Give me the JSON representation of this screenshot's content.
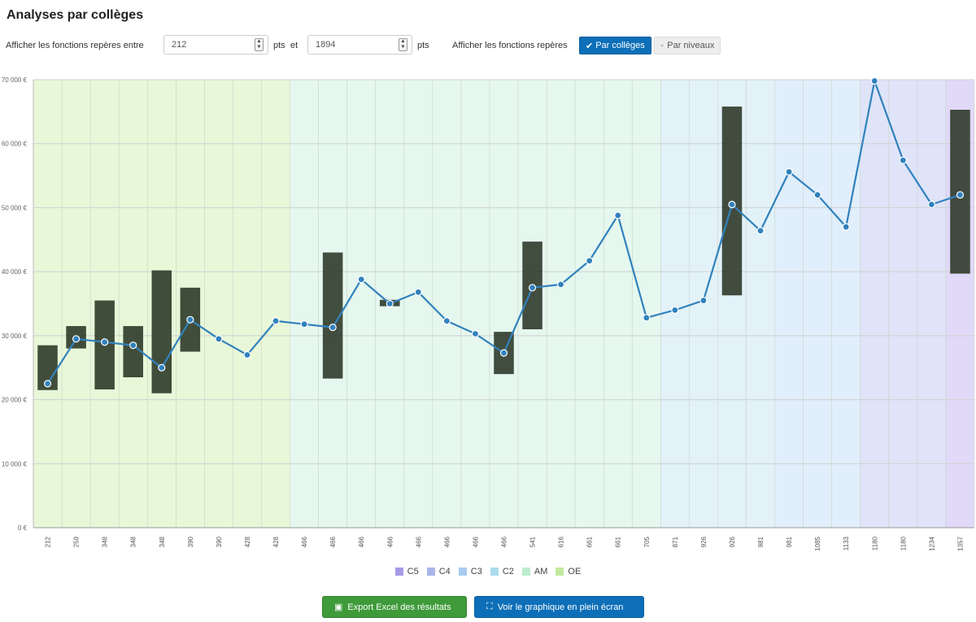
{
  "page": {
    "title": "Analyses par collèges",
    "filter_label_start": "Afficher les fonctions repères entre",
    "min_value": "212",
    "unit_1": "pts",
    "and_label": "et",
    "max_value": "1894",
    "unit_2": "pts",
    "view_label": "Afficher les fonctions repères",
    "view_options": [
      "Par collèges",
      "Par niveaux"
    ],
    "view_selected": "Par collèges",
    "export_button": "Export Excel des résultats",
    "fullscreen_button": "Voir le graphique en plein écran"
  },
  "icons": {
    "check": "check-icon",
    "excel": "excel-file-icon",
    "fullscreen": "expand-icon"
  },
  "chart_data": {
    "type": "line",
    "title": "",
    "xlabel": "",
    "ylabel": "",
    "ylim": [
      0,
      70000
    ],
    "yticks": [
      0,
      10000,
      20000,
      30000,
      40000,
      50000,
      60000,
      70000
    ],
    "ytick_labels": [
      "0 €",
      "10 000 €",
      "20 000 €",
      "30 000 €",
      "40 000 €",
      "50 000 €",
      "60 000 €",
      "70 000 €"
    ],
    "grid": true,
    "legend_placement": "bottom",
    "categories": [
      "212",
      "259",
      "348",
      "348",
      "348",
      "390",
      "390",
      "428",
      "428",
      "466",
      "466",
      "466",
      "466",
      "466",
      "466",
      "466",
      "466",
      "541",
      "616",
      "661",
      "661",
      "705",
      "871",
      "926",
      "926",
      "981",
      "981",
      "1085",
      "1133",
      "1180",
      "1180",
      "1234",
      "1357"
    ],
    "bands": [
      {
        "name": "OE",
        "color": "#d5f0b8",
        "from": 0,
        "to": 8
      },
      {
        "name": "AM",
        "color": "#d0f0e0",
        "from": 9,
        "to": 21
      },
      {
        "name": "C2",
        "color": "#cce8f4",
        "from": 22,
        "to": 25
      },
      {
        "name": "C3",
        "color": "#c8e0f8",
        "from": 26,
        "to": 28
      },
      {
        "name": "C4",
        "color": "#c4cdf2",
        "from": 29,
        "to": 31
      },
      {
        "name": "C5",
        "color": "#c6b9f2",
        "from": 32,
        "to": 32
      }
    ],
    "legend_order": [
      "C5",
      "C4",
      "C3",
      "C2",
      "AM",
      "OE"
    ],
    "legend_colors": {
      "C5": "#a59ae8",
      "C4": "#a9b6ea",
      "C3": "#a9cdf0",
      "C2": "#aadcee",
      "AM": "#bdeccf",
      "OE": "#c2ea9c"
    },
    "series": [
      {
        "type": "line",
        "color": "#3182bd",
        "values": [
          22500,
          29500,
          29000,
          28500,
          25000,
          32500,
          29500,
          27000,
          32300,
          31800,
          31300,
          38800,
          35000,
          36800,
          32300,
          30300,
          27300,
          37500,
          38000,
          41700,
          48800,
          32800,
          34000,
          35500,
          50500,
          46400,
          55600,
          52000,
          47000,
          69800,
          57400,
          50500,
          52000
        ]
      },
      {
        "type": "range",
        "color": "#2f3a2a",
        "ranges": [
          {
            "x": 0,
            "low": 21500,
            "high": 28500
          },
          {
            "x": 1,
            "low": 28000,
            "high": 31500
          },
          {
            "x": 2,
            "low": 21600,
            "high": 35500
          },
          {
            "x": 3,
            "low": 23500,
            "high": 31500
          },
          {
            "x": 4,
            "low": 21000,
            "high": 40200
          },
          {
            "x": 5,
            "low": 27500,
            "high": 37500
          },
          {
            "x": 10,
            "low": 23300,
            "high": 43000
          },
          {
            "x": 12,
            "low": 34600,
            "high": 35600
          },
          {
            "x": 16,
            "low": 24000,
            "high": 30600
          },
          {
            "x": 17,
            "low": 31000,
            "high": 44700
          },
          {
            "x": 24,
            "low": 36300,
            "high": 65800
          },
          {
            "x": 32,
            "low": 39700,
            "high": 65300
          }
        ]
      }
    ]
  }
}
